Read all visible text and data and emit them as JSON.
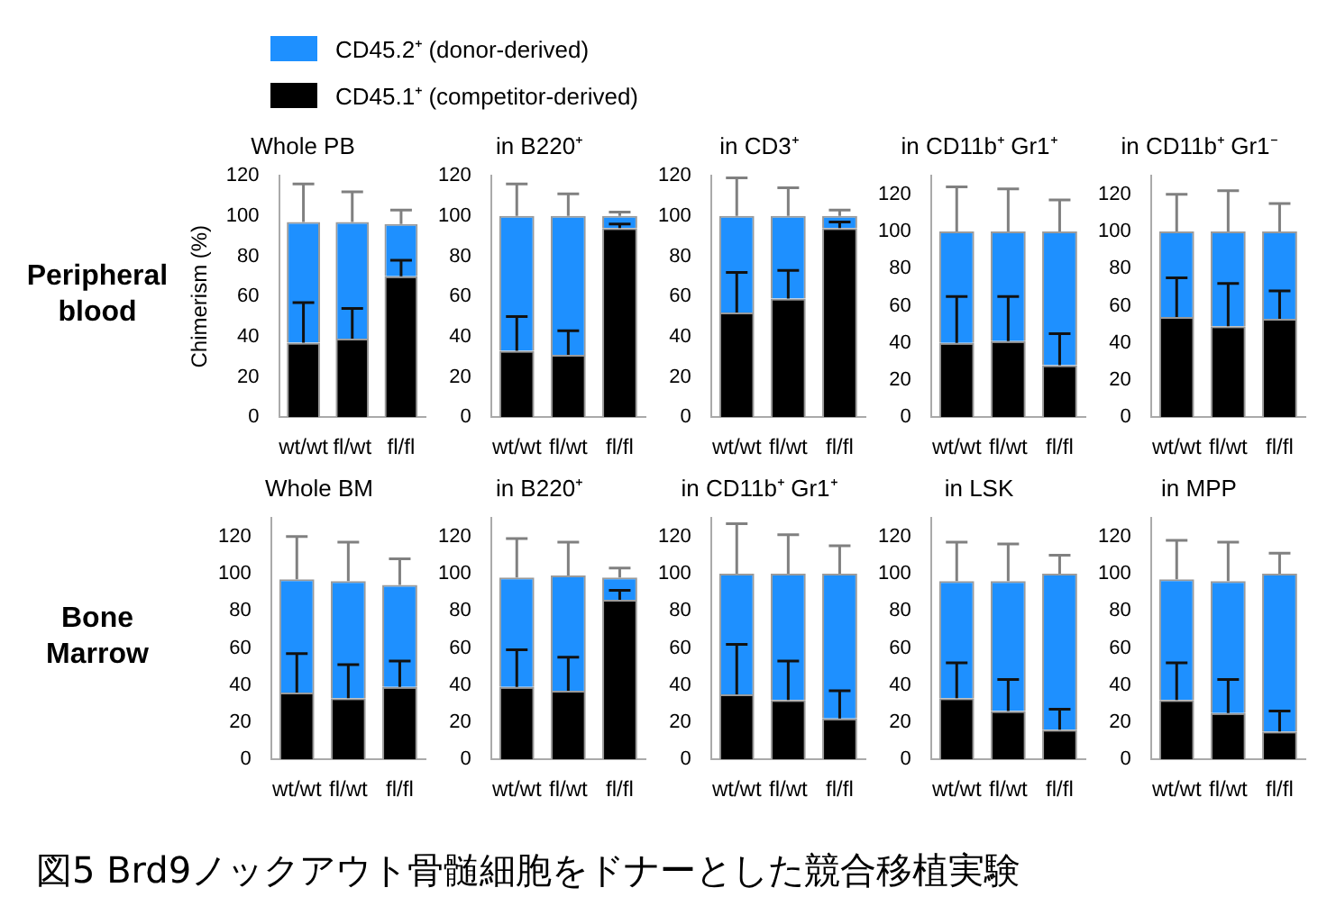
{
  "chart_data": [
    {
      "type": "bar",
      "stacked": true,
      "title": "Whole PB",
      "ylabel": "Chimerism (%)",
      "categories": [
        "wt/wt",
        "fl/wt",
        "fl/fl"
      ],
      "ylim": [
        0,
        120
      ],
      "yticks": [
        0,
        20,
        40,
        60,
        80,
        100,
        120
      ],
      "grid": false,
      "legend": "top",
      "annotations": [
        "Peripheral blood",
        "図5 Brd9ノックアウト骨髄細胞をドナーとした競合移植実験"
      ],
      "series": [
        {
          "name": "CD45.1⁺ (competitor-derived)",
          "color": "#000000",
          "values": [
            37,
            39,
            70
          ],
          "errors": [
            [
              37,
              57
            ],
            [
              39,
              54
            ],
            [
              70,
              78
            ]
          ]
        },
        {
          "name": "CD45.2⁺ (donor-derived)",
          "color": "#1e90ff",
          "values": [
            60,
            58,
            26
          ],
          "errors": [
            [
              97,
              116
            ],
            [
              97,
              112
            ],
            [
              96,
              103
            ]
          ]
        }
      ]
    },
    {
      "type": "bar",
      "stacked": true,
      "title": "in B220⁺",
      "categories": [
        "wt/wt",
        "fl/wt",
        "fl/fl"
      ],
      "ylim": [
        0,
        120
      ],
      "yticks": [
        0,
        20,
        40,
        60,
        80,
        100,
        120
      ],
      "grid": false,
      "series": [
        {
          "color": "#000000",
          "values": [
            33,
            31,
            94
          ],
          "errors": [
            [
              33,
              50
            ],
            [
              31,
              43
            ],
            [
              94,
              96
            ]
          ]
        },
        {
          "color": "#1e90ff",
          "values": [
            67,
            69,
            6
          ],
          "errors": [
            [
              100,
              116
            ],
            [
              100,
              111
            ],
            [
              100,
              102
            ]
          ]
        }
      ]
    },
    {
      "type": "bar",
      "stacked": true,
      "title": "in CD3⁺",
      "categories": [
        "wt/wt",
        "fl/wt",
        "fl/fl"
      ],
      "ylim": [
        0,
        120
      ],
      "yticks": [
        0,
        20,
        40,
        60,
        80,
        100,
        120
      ],
      "grid": false,
      "series": [
        {
          "color": "#000000",
          "values": [
            52,
            59,
            94
          ],
          "errors": [
            [
              52,
              72
            ],
            [
              59,
              73
            ],
            [
              94,
              97
            ]
          ]
        },
        {
          "color": "#1e90ff",
          "values": [
            48,
            41,
            6
          ],
          "errors": [
            [
              100,
              119
            ],
            [
              100,
              114
            ],
            [
              100,
              103
            ]
          ]
        }
      ]
    },
    {
      "type": "bar",
      "stacked": true,
      "title": "in CD11b⁺ Gr1⁺",
      "categories": [
        "wt/wt",
        "fl/wt",
        "fl/fl"
      ],
      "ylim": [
        0,
        130
      ],
      "yticks": [
        0,
        20,
        40,
        60,
        80,
        100,
        120
      ],
      "grid": false,
      "series": [
        {
          "color": "#000000",
          "values": [
            40,
            41,
            28
          ],
          "errors": [
            [
              40,
              65
            ],
            [
              41,
              65
            ],
            [
              28,
              45
            ]
          ]
        },
        {
          "color": "#1e90ff",
          "values": [
            60,
            59,
            72
          ],
          "errors": [
            [
              100,
              124
            ],
            [
              100,
              123
            ],
            [
              100,
              117
            ]
          ]
        }
      ]
    },
    {
      "type": "bar",
      "stacked": true,
      "title": "in CD11b⁺ Gr1⁻",
      "categories": [
        "wt/wt",
        "fl/wt",
        "fl/fl"
      ],
      "ylim": [
        0,
        130
      ],
      "yticks": [
        0,
        20,
        40,
        60,
        80,
        100,
        120
      ],
      "grid": false,
      "series": [
        {
          "color": "#000000",
          "values": [
            54,
            49,
            53
          ],
          "errors": [
            [
              54,
              75
            ],
            [
              49,
              72
            ],
            [
              53,
              68
            ]
          ]
        },
        {
          "color": "#1e90ff",
          "values": [
            46,
            51,
            47
          ],
          "errors": [
            [
              100,
              120
            ],
            [
              100,
              122
            ],
            [
              100,
              115
            ]
          ]
        }
      ]
    },
    {
      "type": "bar",
      "stacked": true,
      "title": "Whole BM",
      "categories": [
        "wt/wt",
        "fl/wt",
        "fl/fl"
      ],
      "ylim": [
        0,
        130
      ],
      "yticks": [
        0,
        20,
        40,
        60,
        80,
        100,
        120
      ],
      "grid": false,
      "annotations": [
        "Bone Marrow"
      ],
      "series": [
        {
          "color": "#000000",
          "values": [
            36,
            33,
            39
          ],
          "errors": [
            [
              36,
              57
            ],
            [
              33,
              51
            ],
            [
              39,
              53
            ]
          ]
        },
        {
          "color": "#1e90ff",
          "values": [
            61,
            63,
            55
          ],
          "errors": [
            [
              97,
              120
            ],
            [
              96,
              117
            ],
            [
              94,
              108
            ]
          ]
        }
      ]
    },
    {
      "type": "bar",
      "stacked": true,
      "title": "in B220⁺",
      "categories": [
        "wt/wt",
        "fl/wt",
        "fl/fl"
      ],
      "ylim": [
        0,
        130
      ],
      "yticks": [
        0,
        20,
        40,
        60,
        80,
        100,
        120
      ],
      "grid": false,
      "series": [
        {
          "color": "#000000",
          "values": [
            39,
            37,
            86
          ],
          "errors": [
            [
              39,
              59
            ],
            [
              37,
              55
            ],
            [
              86,
              91
            ]
          ]
        },
        {
          "color": "#1e90ff",
          "values": [
            59,
            62,
            12
          ],
          "errors": [
            [
              98,
              119
            ],
            [
              99,
              117
            ],
            [
              98,
              103
            ]
          ]
        }
      ]
    },
    {
      "type": "bar",
      "stacked": true,
      "title": "in CD11b⁺ Gr1⁺",
      "categories": [
        "wt/wt",
        "fl/wt",
        "fl/fl"
      ],
      "ylim": [
        0,
        130
      ],
      "yticks": [
        0,
        20,
        40,
        60,
        80,
        100,
        120
      ],
      "grid": false,
      "series": [
        {
          "color": "#000000",
          "values": [
            35,
            32,
            22
          ],
          "errors": [
            [
              35,
              62
            ],
            [
              32,
              53
            ],
            [
              22,
              37
            ]
          ]
        },
        {
          "color": "#1e90ff",
          "values": [
            65,
            68,
            78
          ],
          "errors": [
            [
              100,
              127
            ],
            [
              100,
              121
            ],
            [
              100,
              115
            ]
          ]
        }
      ]
    },
    {
      "type": "bar",
      "stacked": true,
      "title": "in LSK",
      "categories": [
        "wt/wt",
        "fl/wt",
        "fl/fl"
      ],
      "ylim": [
        0,
        130
      ],
      "yticks": [
        0,
        20,
        40,
        60,
        80,
        100,
        120
      ],
      "grid": false,
      "series": [
        {
          "color": "#000000",
          "values": [
            33,
            26,
            16
          ],
          "errors": [
            [
              33,
              52
            ],
            [
              26,
              43
            ],
            [
              16,
              27
            ]
          ]
        },
        {
          "color": "#1e90ff",
          "values": [
            63,
            70,
            84
          ],
          "errors": [
            [
              96,
              117
            ],
            [
              96,
              116
            ],
            [
              100,
              110
            ]
          ]
        }
      ]
    },
    {
      "type": "bar",
      "stacked": true,
      "title": "in MPP",
      "categories": [
        "wt/wt",
        "fl/wt",
        "fl/fl"
      ],
      "ylim": [
        0,
        130
      ],
      "yticks": [
        0,
        20,
        40,
        60,
        80,
        100,
        120
      ],
      "grid": false,
      "series": [
        {
          "color": "#000000",
          "values": [
            32,
            25,
            15
          ],
          "errors": [
            [
              32,
              52
            ],
            [
              25,
              43
            ],
            [
              15,
              26
            ]
          ]
        },
        {
          "color": "#1e90ff",
          "values": [
            65,
            71,
            85
          ],
          "errors": [
            [
              97,
              118
            ],
            [
              96,
              117
            ],
            [
              100,
              111
            ]
          ]
        }
      ]
    }
  ]
}
